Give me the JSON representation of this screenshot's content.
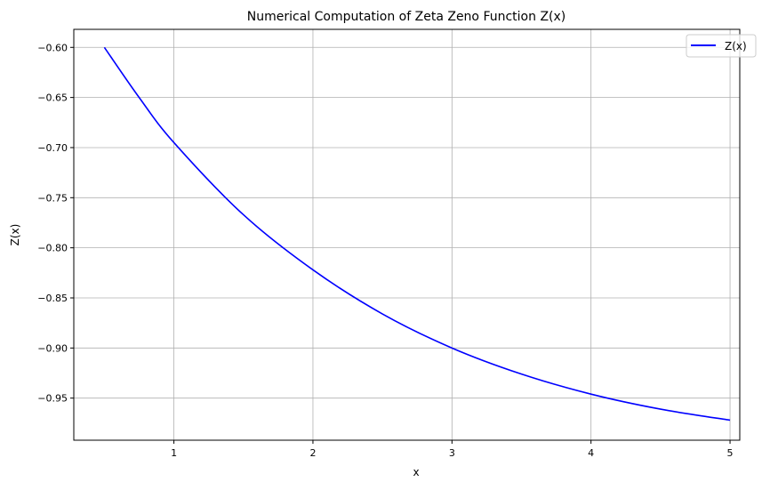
{
  "chart_data": {
    "type": "line",
    "title": "Numerical Computation of Zeta Zeno Function Z(x)",
    "xlabel": "x",
    "ylabel": "Z(x)",
    "xlim": [
      0.28,
      5.07
    ],
    "ylim": [
      -0.992,
      -0.582
    ],
    "xticks": [
      1,
      2,
      3,
      4,
      5
    ],
    "xtick_labels": [
      "1",
      "2",
      "3",
      "4",
      "5"
    ],
    "yticks": [
      -0.6,
      -0.65,
      -0.7,
      -0.75,
      -0.8,
      -0.85,
      -0.9,
      -0.95
    ],
    "ytick_labels": [
      "−0.60",
      "−0.65",
      "−0.70",
      "−0.75",
      "−0.80",
      "−0.85",
      "−0.90",
      "−0.95"
    ],
    "grid": true,
    "legend_position": "top-right",
    "series": [
      {
        "name": "Z(x)",
        "color": "#0000ff",
        "x": [
          0.5,
          0.75,
          1.0,
          1.5,
          2.0,
          2.5,
          3.0,
          3.5,
          4.0,
          4.5,
          5.0
        ],
        "y": [
          -0.6,
          -0.65,
          -0.695,
          -0.767,
          -0.822,
          -0.866,
          -0.9,
          -0.926,
          -0.946,
          -0.961,
          -0.972
        ]
      }
    ]
  }
}
